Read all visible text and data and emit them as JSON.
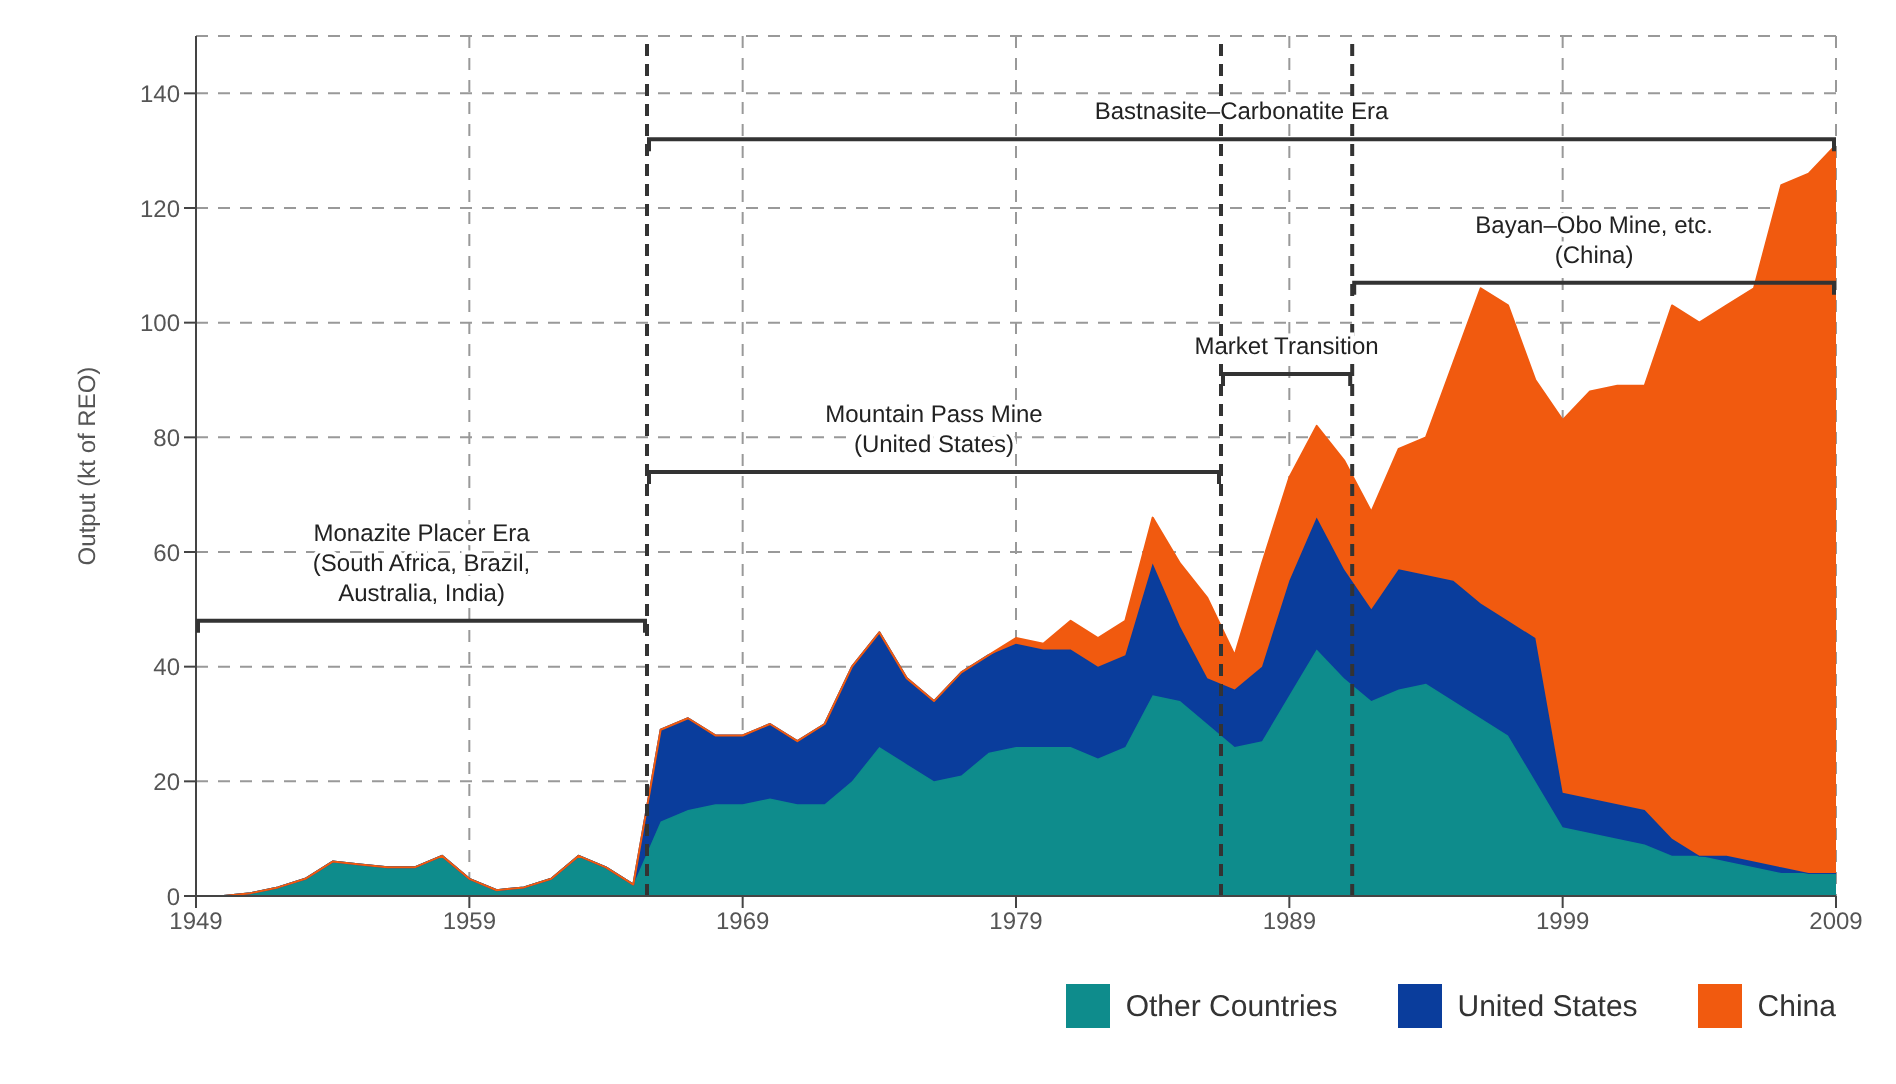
{
  "chart_data": {
    "type": "area",
    "stacked": true,
    "ylabel": "Output (kt of REO)",
    "x": [
      1949,
      1950,
      1951,
      1952,
      1953,
      1954,
      1955,
      1956,
      1957,
      1958,
      1959,
      1960,
      1961,
      1962,
      1963,
      1964,
      1965,
      1966,
      1967,
      1968,
      1969,
      1970,
      1971,
      1972,
      1973,
      1974,
      1975,
      1976,
      1977,
      1978,
      1979,
      1980,
      1981,
      1982,
      1983,
      1984,
      1985,
      1986,
      1987,
      1988,
      1989,
      1990,
      1991,
      1992,
      1993,
      1994,
      1995,
      1996,
      1997,
      1998,
      1999,
      2000,
      2001,
      2002,
      2003,
      2004,
      2005,
      2006,
      2007,
      2008,
      2009
    ],
    "series": [
      {
        "name": "Other Countries",
        "color": "#0e8c8c",
        "values": [
          0,
          0,
          0.5,
          1.5,
          3,
          6,
          5.5,
          5,
          5,
          7,
          3,
          1,
          1.5,
          3,
          7,
          5,
          2,
          13,
          15,
          16,
          16,
          17,
          16,
          16,
          20,
          26,
          23,
          20,
          21,
          25,
          26,
          26,
          26,
          24,
          26,
          35,
          34,
          30,
          26,
          27,
          35,
          43,
          38,
          34,
          36,
          37,
          34,
          31,
          28,
          20,
          12,
          11,
          10,
          9,
          7,
          7,
          6,
          5,
          4,
          4,
          4
        ]
      },
      {
        "name": "United States",
        "color": "#0a3d9c",
        "values": [
          0,
          0,
          0,
          0,
          0,
          0,
          0,
          0,
          0,
          0,
          0,
          0,
          0,
          0,
          0,
          0,
          0,
          16,
          16,
          12,
          12,
          13,
          11,
          14,
          20,
          20,
          15,
          14,
          18,
          17,
          18,
          17,
          17,
          16,
          16,
          23,
          13,
          8,
          10,
          13,
          20,
          23,
          19,
          16,
          21,
          19,
          21,
          20,
          20,
          25,
          6,
          6,
          6,
          6,
          3,
          0,
          1,
          1,
          1,
          0,
          0
        ]
      },
      {
        "name": "China",
        "color": "#f15a0f",
        "values": [
          0,
          0,
          0,
          0,
          0,
          0,
          0,
          0,
          0,
          0,
          0,
          0,
          0,
          0,
          0,
          0,
          0,
          0,
          0,
          0,
          0,
          0,
          0,
          0,
          0,
          0,
          0,
          0,
          0,
          0,
          1,
          1,
          5,
          5,
          6,
          8,
          11,
          14,
          6,
          18,
          18,
          16,
          19,
          17,
          21,
          24,
          38,
          55,
          55,
          45,
          65,
          71,
          73,
          74,
          93,
          93,
          96,
          100,
          119,
          122,
          127
        ]
      }
    ],
    "xlim": [
      1949,
      2009
    ],
    "xticks": [
      1949,
      1959,
      1969,
      1979,
      1989,
      1999,
      2009
    ],
    "ylim": [
      0,
      150
    ],
    "yticks": [
      0,
      20,
      40,
      60,
      80,
      100,
      120,
      140
    ],
    "grid": true,
    "legend": "bottom right",
    "ref_lines": [
      {
        "axis": "x",
        "value": 1965.5,
        "line_style": "dashed",
        "color": "#333333"
      },
      {
        "axis": "x",
        "value": 1986.5,
        "line_style": "dashed",
        "color": "#333333"
      },
      {
        "axis": "x",
        "value": 1991.3,
        "line_style": "dashed",
        "color": "#333333"
      }
    ],
    "annotations": [
      "Monazite Placer Era\n(South Africa, Brazil,\nAustralia, India)",
      "Mountain Pass Mine\n(United States)",
      "Market Transition",
      "Bayan–Obo Mine, etc.\n(China)",
      "Bastnasite–Carbonatite Era"
    ]
  }
}
